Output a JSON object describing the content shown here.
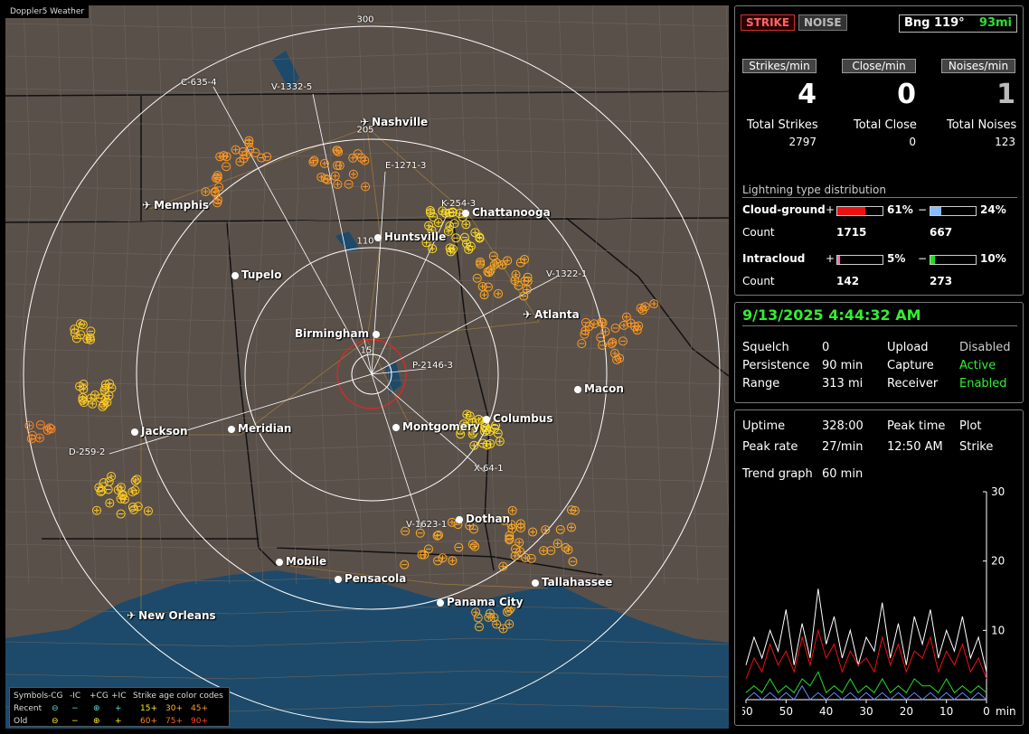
{
  "app_title": "Doppler5 Weather",
  "ring_labels": [
    "300",
    "205",
    "110",
    "15"
  ],
  "cities": [
    {
      "name": "Nashville",
      "kind": "airport"
    },
    {
      "name": "Memphis",
      "kind": "airport"
    },
    {
      "name": "Chattanooga",
      "kind": "dot"
    },
    {
      "name": "Huntsville",
      "kind": "dot"
    },
    {
      "name": "Tupelo",
      "kind": "dot"
    },
    {
      "name": "Atlanta",
      "kind": "airport"
    },
    {
      "name": "Birmingham",
      "kind": "dot"
    },
    {
      "name": "Macon",
      "kind": "dot"
    },
    {
      "name": "Jackson",
      "kind": "dot"
    },
    {
      "name": "Meridian",
      "kind": "dot"
    },
    {
      "name": "Montgomery",
      "kind": "dot"
    },
    {
      "name": "Columbus",
      "kind": "dot"
    },
    {
      "name": "Dothan",
      "kind": "dot"
    },
    {
      "name": "Mobile",
      "kind": "dot"
    },
    {
      "name": "Pensacola",
      "kind": "dot"
    },
    {
      "name": "Tallahassee",
      "kind": "dot"
    },
    {
      "name": "Panama City",
      "kind": "dot"
    },
    {
      "name": "New Orleans",
      "kind": "airport"
    }
  ],
  "cluster_labels": [
    "C-635-4",
    "V-1332-5",
    "E-1271-3",
    "K-254-3",
    "V-1322-1",
    "P-2146-3",
    "D-259-2",
    "X-64-1",
    "V-1623-1"
  ],
  "legend": {
    "header": [
      "Symbols",
      "-CG",
      "-IC",
      "+CG",
      "+IC",
      "Strike age color codes"
    ],
    "recent_label": "Recent",
    "old_label": "Old",
    "recent_ages": [
      "15+",
      "30+",
      "45+"
    ],
    "old_ages": [
      "60+",
      "75+",
      "90+"
    ]
  },
  "status": {
    "strike_tag": "STRIKE",
    "noise_tag": "NOISE",
    "bearing_label": "Bng 119°",
    "bearing_distance": "93mi"
  },
  "rates": [
    {
      "label": "Strikes/min",
      "value": "4",
      "color": "#ffffff"
    },
    {
      "label": "Close/min",
      "value": "0",
      "color": "#ffffff"
    },
    {
      "label": "Noises/min",
      "value": "1",
      "color": "#bbbbbb"
    }
  ],
  "totals": [
    {
      "label": "Total Strikes",
      "value": "2797"
    },
    {
      "label": "Total Close",
      "value": "0"
    },
    {
      "label": "Total Noises",
      "value": "123"
    }
  ],
  "distribution": {
    "title": "Lightning type distribution",
    "count_label": "Count",
    "cloud_ground": {
      "label": "Cloud-ground",
      "pos_pct": 61,
      "neg_pct": 24,
      "pos_text": "61%",
      "neg_text": "24%",
      "pos_count": "1715",
      "neg_count": "667",
      "pos_color": "#ee1111",
      "neg_color": "#88bbff"
    },
    "intracloud": {
      "label": "Intracloud",
      "pos_pct": 5,
      "neg_pct": 10,
      "pos_text": "5%",
      "neg_text": "10%",
      "pos_count": "142",
      "neg_count": "273",
      "pos_color": "#ff66aa",
      "neg_color": "#22dd22"
    },
    "plus_sign": "+",
    "minus_sign": "−"
  },
  "clock": "9/13/2025 4:44:32 AM",
  "settings": [
    {
      "key": "Squelch",
      "value": "0"
    },
    {
      "key": "Persistence",
      "value": "90 min"
    },
    {
      "key": "Range",
      "value": "313 mi"
    }
  ],
  "services": [
    {
      "key": "Upload",
      "value": "Disabled",
      "color": "#cccccc"
    },
    {
      "key": "Capture",
      "value": "Active",
      "color": "#33ee33"
    },
    {
      "key": "Receiver",
      "value": "Enabled",
      "color": "#33ee33"
    }
  ],
  "stats": {
    "uptime_label": "Uptime",
    "uptime_value": "328:00",
    "peak_time_label": "Peak time",
    "peak_time_value": "12:50 AM",
    "plot_label": "Plot",
    "plot_value": "Strike",
    "peak_rate_label": "Peak rate",
    "peak_rate_value": "27/min",
    "trend_label": "Trend graph",
    "trend_value": "60 min"
  },
  "chart_data": {
    "type": "line",
    "title": "",
    "xlabel": "min",
    "ylabel": "",
    "x_ticks": [
      60,
      50,
      40,
      30,
      20,
      10,
      0
    ],
    "y_ticks": [
      10,
      20,
      30
    ],
    "xlim": [
      60,
      0
    ],
    "ylim": [
      0,
      30
    ],
    "x": [
      60,
      58,
      56,
      54,
      52,
      50,
      48,
      46,
      44,
      42,
      40,
      38,
      36,
      34,
      32,
      30,
      28,
      26,
      24,
      22,
      20,
      18,
      16,
      14,
      12,
      10,
      8,
      6,
      4,
      2,
      0
    ],
    "series": [
      {
        "color": "#ffffff",
        "values": [
          5,
          9,
          6,
          10,
          7,
          13,
          5,
          11,
          6,
          16,
          8,
          12,
          6,
          10,
          5,
          9,
          7,
          14,
          6,
          11,
          5,
          12,
          8,
          13,
          6,
          10,
          7,
          12,
          6,
          9,
          4
        ]
      },
      {
        "color": "#ee1111",
        "values": [
          3,
          6,
          4,
          8,
          5,
          7,
          4,
          9,
          5,
          10,
          6,
          8,
          4,
          7,
          5,
          6,
          4,
          9,
          5,
          8,
          4,
          7,
          6,
          9,
          4,
          7,
          5,
          8,
          4,
          6,
          3
        ]
      },
      {
        "color": "#22dd22",
        "values": [
          1,
          2,
          1,
          3,
          1,
          2,
          1,
          3,
          2,
          4,
          1,
          2,
          1,
          3,
          1,
          2,
          1,
          3,
          1,
          2,
          1,
          3,
          2,
          2,
          1,
          3,
          1,
          2,
          1,
          2,
          1
        ]
      },
      {
        "color": "#6688ff",
        "values": [
          0,
          1,
          0,
          1,
          0,
          1,
          0,
          2,
          0,
          1,
          0,
          1,
          0,
          1,
          0,
          1,
          0,
          1,
          0,
          1,
          0,
          1,
          0,
          1,
          0,
          1,
          0,
          1,
          0,
          1,
          0
        ]
      }
    ]
  }
}
